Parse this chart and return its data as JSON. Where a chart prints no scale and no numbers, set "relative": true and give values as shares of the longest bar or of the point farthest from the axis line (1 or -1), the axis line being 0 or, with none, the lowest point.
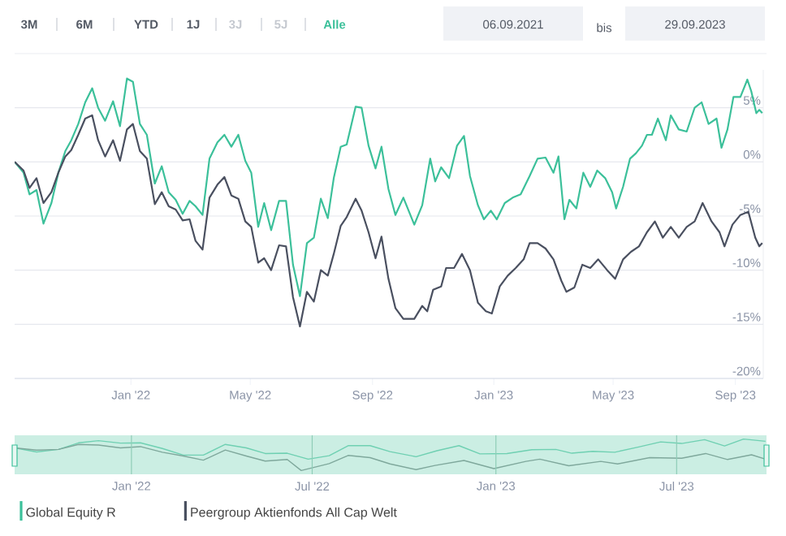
{
  "chart_data": [
    {
      "type": "line",
      "xlim": [
        "2021-09-06",
        "2023-09-29"
      ],
      "ylim": [
        -20,
        8.5
      ],
      "xticks": [
        {
          "value": "2022-01-01",
          "label": "Jan '22"
        },
        {
          "value": "2022-05-01",
          "label": "May '22"
        },
        {
          "value": "2022-09-01",
          "label": "Sep '22"
        },
        {
          "value": "2023-01-01",
          "label": "Jan '23"
        },
        {
          "value": "2023-05-01",
          "label": "May '23"
        },
        {
          "value": "2023-09-01",
          "label": "Sep '23"
        }
      ],
      "yticks": [
        {
          "value": 5,
          "label": "5%"
        },
        {
          "value": 0,
          "label": "0%"
        },
        {
          "value": -5,
          "label": "-5%"
        },
        {
          "value": -10,
          "label": "-10%"
        },
        {
          "value": -15,
          "label": "-15%"
        },
        {
          "value": -20,
          "label": "-20%"
        }
      ],
      "grid": "y",
      "legend": "bottom",
      "annotations": [
        "3M",
        "6M",
        "YTD",
        "1J",
        "3J",
        "5J",
        "Alle",
        "06.09.2021",
        "bis",
        "29.09.2023"
      ],
      "series": [
        {
          "name": "Global Equity R",
          "color": "#3cc09a",
          "x": [
            "2021-09-06",
            "2021-09-15",
            "2021-09-21",
            "2021-09-28",
            "2021-10-05",
            "2021-10-13",
            "2021-10-20",
            "2021-10-27",
            "2021-11-02",
            "2021-11-09",
            "2021-11-16",
            "2021-11-23",
            "2021-11-29",
            "2021-12-06",
            "2021-12-14",
            "2021-12-21",
            "2021-12-28",
            "2022-01-03",
            "2022-01-10",
            "2022-01-17",
            "2022-01-25",
            "2022-02-01",
            "2022-02-08",
            "2022-02-15",
            "2022-02-22",
            "2022-03-01",
            "2022-03-07",
            "2022-03-14",
            "2022-03-21",
            "2022-03-29",
            "2022-04-05",
            "2022-04-12",
            "2022-04-19",
            "2022-04-26",
            "2022-05-02",
            "2022-05-09",
            "2022-05-15",
            "2022-05-22",
            "2022-05-30",
            "2022-06-06",
            "2022-06-13",
            "2022-06-20",
            "2022-06-27",
            "2022-07-04",
            "2022-07-11",
            "2022-07-18",
            "2022-07-24",
            "2022-07-31",
            "2022-08-06",
            "2022-08-15",
            "2022-08-21",
            "2022-08-28",
            "2022-09-04",
            "2022-09-10",
            "2022-09-17",
            "2022-09-24",
            "2022-10-02",
            "2022-10-13",
            "2022-10-21",
            "2022-10-29",
            "2022-11-03",
            "2022-11-09",
            "2022-11-17",
            "2022-11-25",
            "2022-12-02",
            "2022-12-08",
            "2022-12-16",
            "2022-12-22",
            "2022-12-29",
            "2023-01-04",
            "2023-01-12",
            "2023-01-20",
            "2023-01-28",
            "2023-02-06",
            "2023-02-14",
            "2023-02-22",
            "2023-03-02",
            "2023-03-07",
            "2023-03-13",
            "2023-03-18",
            "2023-03-25",
            "2023-04-01",
            "2023-04-08",
            "2023-04-15",
            "2023-04-23",
            "2023-04-30",
            "2023-05-04",
            "2023-05-11",
            "2023-05-18",
            "2023-05-24",
            "2023-05-30",
            "2023-06-04",
            "2023-06-09",
            "2023-06-15",
            "2023-06-23",
            "2023-06-28",
            "2023-07-06",
            "2023-07-14",
            "2023-07-22",
            "2023-07-29",
            "2023-08-05",
            "2023-08-13",
            "2023-08-18",
            "2023-08-24",
            "2023-08-30",
            "2023-09-06",
            "2023-09-13",
            "2023-09-17",
            "2023-09-22",
            "2023-09-25",
            "2023-09-28"
          ],
          "values": [
            0,
            -1,
            -3,
            -2.6,
            -5.7,
            -3.8,
            -1,
            1,
            2,
            3.5,
            5.5,
            6.8,
            5,
            3.8,
            5.6,
            3.3,
            7.7,
            7.4,
            3.5,
            2.5,
            -2,
            -0.4,
            -2.8,
            -3.5,
            -4.8,
            -3.6,
            -4.1,
            -4.9,
            0.3,
            1.8,
            2.5,
            1.4,
            2.5,
            0.1,
            -1,
            -6,
            -3.8,
            -6.3,
            -3.6,
            -3.6,
            -9.5,
            -12.4,
            -7.5,
            -7,
            -3.4,
            -5.2,
            -1.5,
            1.4,
            1.6,
            5.1,
            5,
            1.5,
            -0.6,
            1.4,
            -2.5,
            -4.9,
            -3.3,
            -5.8,
            -4,
            0.3,
            -1.8,
            -0.5,
            -1.5,
            1.5,
            2.4,
            -1.3,
            -4,
            -5.3,
            -4.5,
            -5.3,
            -3.8,
            -3.3,
            -3,
            -1.3,
            0.3,
            0.4,
            -1,
            0.5,
            -5.3,
            -3.5,
            -4.3,
            -1,
            -2.3,
            -0.8,
            -1.5,
            -2.8,
            -4.3,
            -2.3,
            0.3,
            0.8,
            1.5,
            2.5,
            2.5,
            4,
            2,
            4.3,
            3,
            2.8,
            5,
            5.5,
            3.5,
            4,
            1.3,
            3,
            6,
            6,
            7.6,
            6.5,
            4.5,
            4.8,
            4.5
          ]
        },
        {
          "name": "Peergroup Aktienfonds All Cap Welt",
          "color": "#4a5060",
          "x": [
            "2021-09-06",
            "2021-09-15",
            "2021-09-21",
            "2021-09-28",
            "2021-10-05",
            "2021-10-13",
            "2021-10-20",
            "2021-10-27",
            "2021-11-02",
            "2021-11-09",
            "2021-11-16",
            "2021-11-23",
            "2021-11-29",
            "2021-12-06",
            "2021-12-14",
            "2021-12-21",
            "2021-12-28",
            "2022-01-03",
            "2022-01-10",
            "2022-01-17",
            "2022-01-25",
            "2022-02-01",
            "2022-02-08",
            "2022-02-15",
            "2022-02-22",
            "2022-03-01",
            "2022-03-07",
            "2022-03-14",
            "2022-03-21",
            "2022-03-29",
            "2022-04-05",
            "2022-04-12",
            "2022-04-19",
            "2022-04-26",
            "2022-05-02",
            "2022-05-09",
            "2022-05-15",
            "2022-05-22",
            "2022-05-30",
            "2022-06-06",
            "2022-06-13",
            "2022-06-20",
            "2022-06-27",
            "2022-07-04",
            "2022-07-11",
            "2022-07-18",
            "2022-07-24",
            "2022-07-31",
            "2022-08-06",
            "2022-08-15",
            "2022-08-21",
            "2022-08-28",
            "2022-09-04",
            "2022-09-10",
            "2022-09-17",
            "2022-09-24",
            "2022-10-02",
            "2022-10-13",
            "2022-10-21",
            "2022-10-26",
            "2022-11-01",
            "2022-11-09",
            "2022-11-14",
            "2022-11-22",
            "2022-11-30",
            "2022-12-08",
            "2022-12-16",
            "2022-12-24",
            "2022-12-30",
            "2023-01-07",
            "2023-01-15",
            "2023-01-23",
            "2023-01-31",
            "2023-02-06",
            "2023-02-14",
            "2023-02-22",
            "2023-03-02",
            "2023-03-10",
            "2023-03-15",
            "2023-03-23",
            "2023-03-31",
            "2023-04-08",
            "2023-04-16",
            "2023-04-25",
            "2023-05-03",
            "2023-05-11",
            "2023-05-19",
            "2023-05-27",
            "2023-06-04",
            "2023-06-12",
            "2023-06-20",
            "2023-06-28",
            "2023-07-06",
            "2023-07-14",
            "2023-07-22",
            "2023-07-30",
            "2023-08-08",
            "2023-08-16",
            "2023-08-21",
            "2023-08-29",
            "2023-09-06",
            "2023-09-14",
            "2023-09-21",
            "2023-09-25",
            "2023-09-28"
          ],
          "values": [
            0,
            -0.8,
            -2.4,
            -1.5,
            -3.8,
            -2.8,
            -1,
            0.5,
            1.1,
            2.5,
            4,
            4.3,
            2,
            0.5,
            2,
            0.1,
            3,
            3.5,
            1,
            0.3,
            -3.9,
            -2.8,
            -4.1,
            -4.4,
            -5.4,
            -5.3,
            -7.3,
            -8.1,
            -3.3,
            -2.1,
            -1.4,
            -3.1,
            -3.4,
            -5.5,
            -6,
            -9.3,
            -8.9,
            -10,
            -7.7,
            -7.8,
            -12.5,
            -15.2,
            -12,
            -12.9,
            -10,
            -10.5,
            -8.5,
            -5.9,
            -5.1,
            -3.4,
            -4.5,
            -6.5,
            -8.9,
            -6.9,
            -10.8,
            -13.5,
            -14.5,
            -14.5,
            -13.3,
            -13.8,
            -11.8,
            -11.5,
            -9.8,
            -9.8,
            -8.5,
            -10,
            -13,
            -13.8,
            -14,
            -11.5,
            -10.5,
            -9.8,
            -9,
            -7.5,
            -7.5,
            -8,
            -9,
            -11,
            -12,
            -11.6,
            -9.5,
            -9.8,
            -9,
            -10,
            -10.8,
            -9,
            -8.3,
            -7.8,
            -6.5,
            -5.5,
            -7,
            -6,
            -7,
            -6,
            -5.5,
            -3.8,
            -5.5,
            -6.5,
            -7.8,
            -5.8,
            -4.9,
            -4.6,
            -7,
            -7.8,
            -7.5
          ]
        }
      ]
    },
    {
      "type": "line",
      "xlim": [
        "2021-09-06",
        "2023-09-29"
      ],
      "relative": true,
      "tick_labels": "x",
      "grid": "x",
      "xticks": [
        {
          "value": "2022-01-01",
          "label": "Jan '22"
        },
        {
          "value": "2022-07-01",
          "label": "Jul '22"
        },
        {
          "value": "2023-01-01",
          "label": "Jan '23"
        },
        {
          "value": "2023-07-01",
          "label": "Jul '23"
        }
      ],
      "bands": [
        {
          "axis": "x",
          "from": "2021-09-06",
          "to": "2023-09-29",
          "color": "#cbeee3"
        }
      ],
      "series": [
        {
          "color": "#6fd0b2",
          "x": [
            "2021-09-06",
            "2021-09-28",
            "2021-10-20",
            "2021-11-09",
            "2021-11-29",
            "2021-12-21",
            "2022-01-10",
            "2022-02-01",
            "2022-02-22",
            "2022-03-14",
            "2022-04-05",
            "2022-04-26",
            "2022-05-15",
            "2022-06-06",
            "2022-06-27",
            "2022-07-18",
            "2022-08-06",
            "2022-08-28",
            "2022-09-17",
            "2022-10-13",
            "2022-11-03",
            "2022-11-25",
            "2022-12-16",
            "2023-01-12",
            "2023-02-06",
            "2023-03-02",
            "2023-03-18",
            "2023-04-08",
            "2023-04-30",
            "2023-05-24",
            "2023-06-15",
            "2023-07-06",
            "2023-07-29",
            "2023-08-18",
            "2023-09-06",
            "2023-09-28"
          ],
          "values": [
            0.72,
            0.59,
            0.67,
            0.88,
            0.95,
            0.87,
            0.88,
            0.7,
            0.49,
            0.49,
            0.83,
            0.72,
            0.54,
            0.55,
            0.36,
            0.47,
            0.79,
            0.79,
            0.6,
            0.44,
            0.63,
            0.79,
            0.53,
            0.54,
            0.66,
            0.67,
            0.55,
            0.61,
            0.58,
            0.75,
            0.91,
            0.86,
            0.98,
            0.78,
            1,
            0.93
          ]
        },
        {
          "color": "#7fa89c",
          "x": [
            "2021-09-06",
            "2021-09-28",
            "2021-10-20",
            "2021-11-09",
            "2021-11-29",
            "2021-12-21",
            "2022-01-10",
            "2022-02-01",
            "2022-02-22",
            "2022-03-14",
            "2022-04-05",
            "2022-04-26",
            "2022-05-15",
            "2022-06-06",
            "2022-06-20",
            "2022-07-18",
            "2022-08-06",
            "2022-08-28",
            "2022-09-17",
            "2022-10-13",
            "2022-11-01",
            "2022-11-30",
            "2022-12-30",
            "2023-01-31",
            "2023-02-14",
            "2023-03-15",
            "2023-04-16",
            "2023-05-03",
            "2023-06-04",
            "2023-07-06",
            "2023-07-30",
            "2023-08-21",
            "2023-09-14",
            "2023-09-28"
          ],
          "values": [
            0.72,
            0.65,
            0.67,
            0.83,
            0.81,
            0.72,
            0.76,
            0.58,
            0.46,
            0.33,
            0.65,
            0.46,
            0.3,
            0.35,
            0,
            0.22,
            0.48,
            0.41,
            0.21,
            0.03,
            0.16,
            0.32,
            0.06,
            0.29,
            0.36,
            0.15,
            0.29,
            0.21,
            0.41,
            0.39,
            0.54,
            0.35,
            0.5,
            0.36
          ]
        }
      ]
    }
  ]
}
